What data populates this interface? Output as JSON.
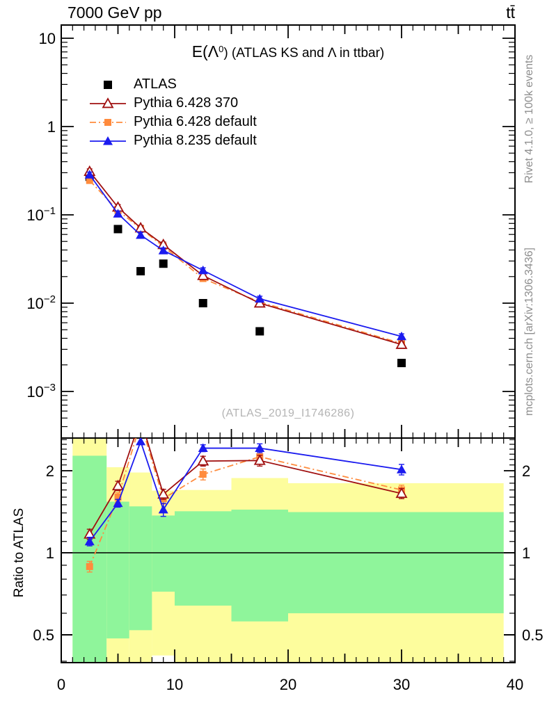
{
  "header": {
    "left": "7000 GeV pp",
    "right": "tt̄"
  },
  "side_texts": {
    "top": "Rivet 4.1.0, ≥ 100k events",
    "bottom": "mcplots.cern.ch [arXiv:1306.3436]"
  },
  "title": {
    "prefix": "E(Λ",
    "sup": "0",
    "suffix": ") (ATLAS KS and Λ in ttbar)"
  },
  "watermark": "(ATLAS_2019_I1746286)",
  "chart_data": {
    "type": "line",
    "title": "E(Λ0) (ATLAS KS and Λ in ttbar)",
    "xlim": [
      0,
      40
    ],
    "x_values": [
      2.5,
      5,
      7,
      9,
      12.5,
      17.5,
      30
    ],
    "x_ticks": [
      {
        "v": 0,
        "label": "0"
      },
      {
        "v": 10,
        "label": "10"
      },
      {
        "v": 20,
        "label": "20"
      },
      {
        "v": 30,
        "label": "30"
      },
      {
        "v": 40,
        "label": "40"
      }
    ],
    "main_panel": {
      "yscale": "log",
      "ylim": [
        0.0003,
        13
      ],
      "yticks": [
        {
          "v": 10,
          "base": "10",
          "exp": ""
        },
        {
          "v": 1,
          "base": "1",
          "exp": ""
        },
        {
          "v": 0.1,
          "base": "10",
          "exp": "−1"
        },
        {
          "v": 0.01,
          "base": "10",
          "exp": "−2"
        },
        {
          "v": 0.001,
          "base": "10",
          "exp": "−3"
        }
      ]
    },
    "ratio_panel": {
      "yscale": "log",
      "ylim": [
        0.4,
        2.6
      ],
      "ylabel": "Ratio to ATLAS",
      "yticks": [
        {
          "v": 2,
          "label": "2"
        },
        {
          "v": 1,
          "label": "1"
        },
        {
          "v": 0.5,
          "label": "0.5"
        }
      ],
      "band_colors": {
        "yellow": "#fdfd9d",
        "green": "#8ff59b"
      },
      "bands": [
        {
          "x": [
            1,
            4
          ],
          "yellow": [
            0.35,
            3.0
          ],
          "green": [
            0.35,
            2.27
          ]
        },
        {
          "x": [
            4,
            6
          ],
          "yellow": [
            0.35,
            2.06
          ],
          "green": [
            0.485,
            1.54
          ]
        },
        {
          "x": [
            6,
            8
          ],
          "yellow": [
            0.35,
            1.97
          ],
          "green": [
            0.52,
            1.48
          ]
        },
        {
          "x": [
            8,
            10
          ],
          "yellow": [
            0.42,
            1.69
          ],
          "green": [
            0.72,
            1.37
          ]
        },
        {
          "x": [
            10,
            15
          ],
          "yellow": [
            0.35,
            1.7
          ],
          "green": [
            0.64,
            1.42
          ]
        },
        {
          "x": [
            15,
            20
          ],
          "yellow": [
            0.35,
            1.88
          ],
          "green": [
            0.56,
            1.44
          ]
        },
        {
          "x": [
            20,
            39
          ],
          "yellow": [
            0.35,
            1.8
          ],
          "green": [
            0.6,
            1.41
          ]
        }
      ]
    },
    "series": [
      {
        "label": "ATLAS",
        "color": "#000000",
        "marker": "square",
        "msize": 12,
        "line": "none",
        "values": [
          0.27,
          0.069,
          0.023,
          0.028,
          0.01,
          0.0048,
          0.0021
        ]
      },
      {
        "label": "Pythia 6.428 370",
        "color": "#a01010",
        "marker": "triangle-open",
        "msize": 14,
        "line": "solid",
        "values": [
          0.31,
          0.122,
          0.071,
          0.046,
          0.0205,
          0.01,
          0.0034
        ],
        "ratio": [
          1.17,
          1.76,
          3.1,
          1.64,
          2.17,
          2.18,
          1.65
        ],
        "ratio_err": [
          0.05,
          0.07,
          0,
          0.07,
          0.09,
          0.1,
          0.07
        ]
      },
      {
        "label": "Pythia 6.428 default",
        "color": "#ff8b3d",
        "marker": "square",
        "msize": 10,
        "line": "dashdot",
        "values": [
          0.245,
          0.112,
          0.07,
          0.044,
          0.019,
          0.0103,
          0.0035
        ],
        "ratio": [
          0.89,
          1.6,
          3.0,
          1.58,
          1.94,
          2.25,
          1.7
        ],
        "ratio_err": [
          0.04,
          0.06,
          0,
          0.07,
          0.09,
          0.1,
          0.07
        ]
      },
      {
        "label": "Pythia 8.235 default",
        "color": "#1b1bef",
        "marker": "triangle",
        "msize": 14,
        "line": "solid",
        "values": [
          0.285,
          0.103,
          0.059,
          0.0395,
          0.0235,
          0.0112,
          0.0042
        ],
        "ratio": [
          1.1,
          1.52,
          2.56,
          1.44,
          2.42,
          2.42,
          2.02
        ],
        "ratio_err": [
          0.04,
          0.05,
          0,
          0.08,
          0.07,
          0.09,
          0.09
        ]
      }
    ]
  }
}
